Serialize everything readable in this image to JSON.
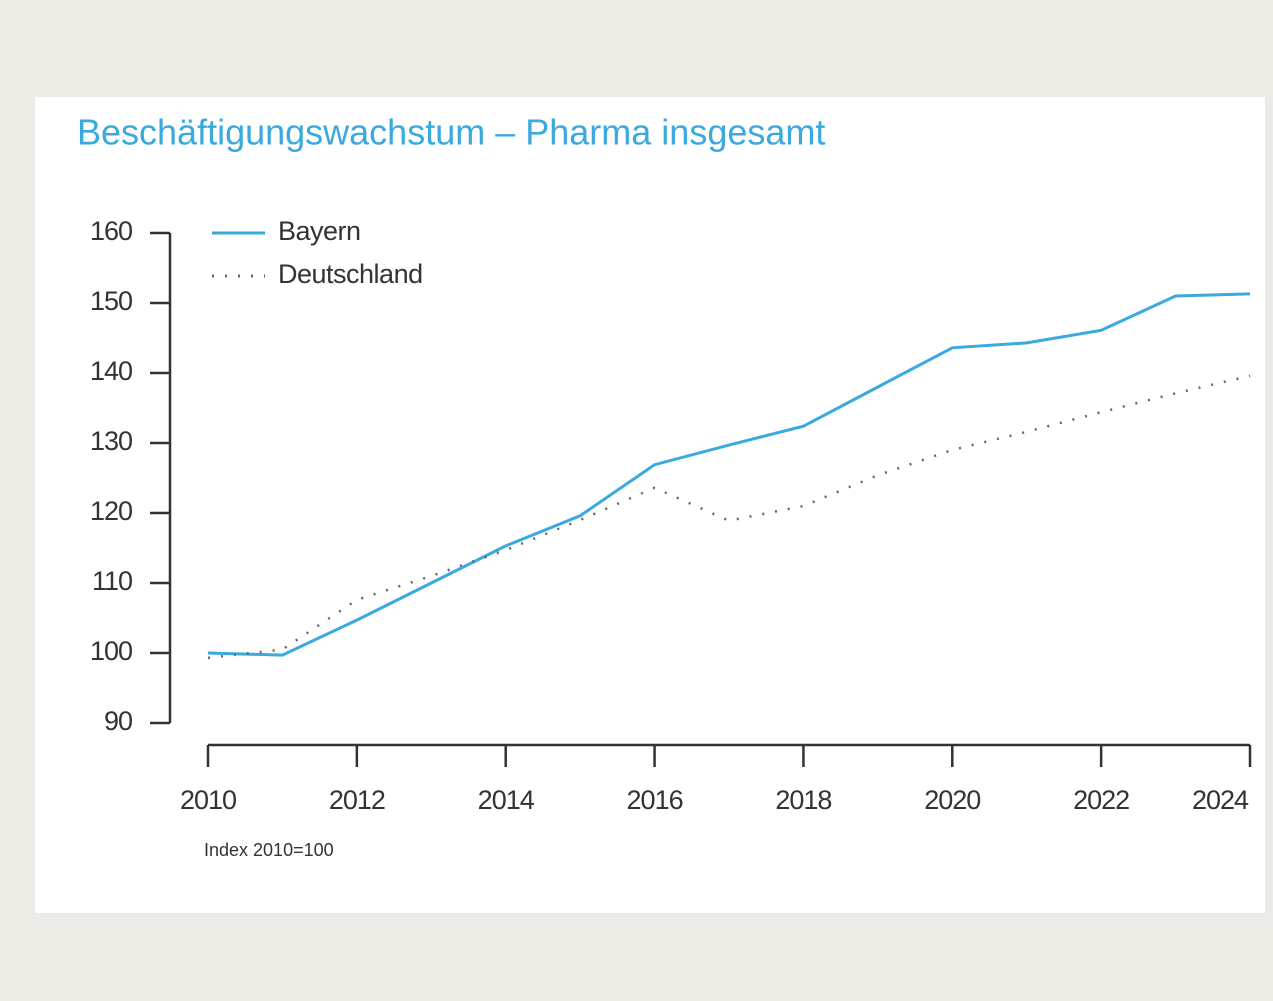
{
  "chart_data": {
    "type": "line",
    "title": "Beschäftigungswachstum – Pharma insgesamt",
    "note": "Index 2010=100",
    "x": [
      2010,
      2011,
      2012,
      2013,
      2014,
      2015,
      2016,
      2017,
      2018,
      2019,
      2020,
      2021,
      2022,
      2023,
      2024
    ],
    "series": [
      {
        "name": "Bayern",
        "color": "#3aa9de",
        "style": "solid",
        "values": [
          100,
          99.7,
          104.7,
          110,
          115.3,
          119.6,
          126.9,
          129.7,
          132.4,
          138,
          143.6,
          144.3,
          146.1,
          151,
          151.3
        ]
      },
      {
        "name": "Deutschland",
        "color": "#666666",
        "style": "dotted",
        "values": [
          99.3,
          100.5,
          107.6,
          111,
          114.7,
          119,
          123.6,
          118.9,
          121,
          125.4,
          129,
          131.6,
          134.4,
          137.1,
          139.6
        ]
      }
    ],
    "xlim": [
      2010,
      2024
    ],
    "xticks": [
      2010,
      2012,
      2014,
      2016,
      2018,
      2020,
      2022,
      2024
    ],
    "ylim": [
      90,
      160
    ],
    "yticks": [
      90,
      100,
      110,
      120,
      130,
      140,
      150,
      160
    ],
    "legend": "top-left",
    "grid": false
  }
}
